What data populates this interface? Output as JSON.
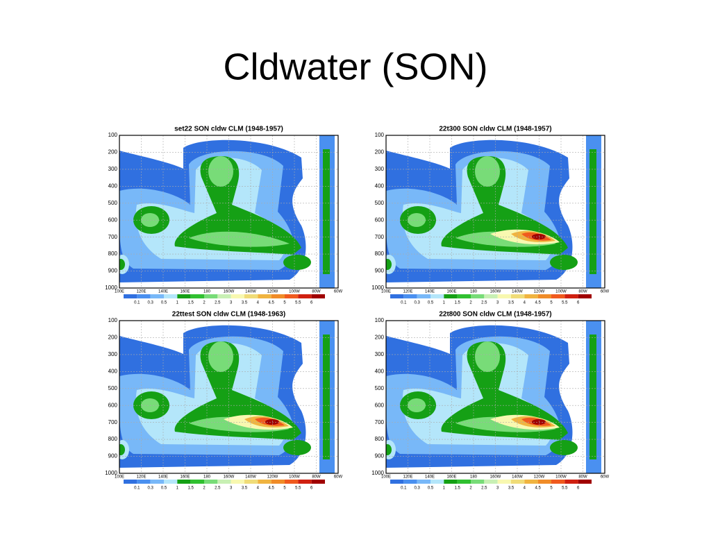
{
  "title": "Cldwater (SON)",
  "chart_data": [
    {
      "type": "contour",
      "title": "set22 SON cldw CLM (1948-1957)",
      "xlim": [
        100,
        300
      ],
      "xticks": [
        {
          "value": 100,
          "label": "100E"
        },
        {
          "value": 120,
          "label": "120E"
        },
        {
          "value": 140,
          "label": "140E"
        },
        {
          "value": 160,
          "label": "160E"
        },
        180,
        {
          "value": 200,
          "label": "160W"
        },
        {
          "value": 220,
          "label": "140W"
        },
        {
          "value": 240,
          "label": "120W"
        },
        {
          "value": 260,
          "label": "100W"
        },
        {
          "value": 280,
          "label": "80W"
        },
        {
          "value": 300,
          "label": "60W"
        }
      ],
      "ylim": [
        1000,
        100
      ],
      "yticks": [
        100,
        200,
        300,
        400,
        500,
        600,
        700,
        800,
        900,
        1000
      ],
      "levels": [
        0.1,
        0.3,
        0.5,
        1,
        1.5,
        2,
        2.5,
        3,
        3.5,
        4,
        4.5,
        5,
        5.5,
        6
      ],
      "colors": [
        "#3070e0",
        "#4a90f0",
        "#78b8f8",
        "#b4e6fa",
        "#15a015",
        "#30c030",
        "#78dc78",
        "#c8f0b4",
        "#f8f8b0",
        "#f0dc78",
        "#f0b440",
        "#f08c28",
        "#f05a1e",
        "#d02010",
        "#a00000"
      ],
      "grid": true
    },
    {
      "type": "contour",
      "title": "22t300 SON cldw CLM (1948-1957)",
      "xlim": [
        100,
        300
      ],
      "xticks": [
        {
          "value": 100,
          "label": "100E"
        },
        {
          "value": 120,
          "label": "120E"
        },
        {
          "value": 140,
          "label": "140E"
        },
        {
          "value": 160,
          "label": "160E"
        },
        180,
        {
          "value": 200,
          "label": "160W"
        },
        {
          "value": 220,
          "label": "140W"
        },
        {
          "value": 240,
          "label": "120W"
        },
        {
          "value": 260,
          "label": "100W"
        },
        {
          "value": 280,
          "label": "80W"
        },
        {
          "value": 300,
          "label": "60W"
        }
      ],
      "ylim": [
        1000,
        100
      ],
      "yticks": [
        100,
        200,
        300,
        400,
        500,
        600,
        700,
        800,
        900,
        1000
      ],
      "levels": [
        0.1,
        0.3,
        0.5,
        1,
        1.5,
        2,
        2.5,
        3,
        3.5,
        4,
        4.5,
        5,
        5.5,
        6
      ],
      "colors": [
        "#3070e0",
        "#4a90f0",
        "#78b8f8",
        "#b4e6fa",
        "#15a015",
        "#30c030",
        "#78dc78",
        "#c8f0b4",
        "#f8f8b0",
        "#f0dc78",
        "#f0b440",
        "#f08c28",
        "#f05a1e",
        "#d02010",
        "#a00000"
      ],
      "grid": true
    },
    {
      "type": "contour",
      "title": "22ttest SON cldw CLM (1948-1963)",
      "xlim": [
        100,
        300
      ],
      "xticks": [
        {
          "value": 100,
          "label": "100E"
        },
        {
          "value": 120,
          "label": "120E"
        },
        {
          "value": 140,
          "label": "140E"
        },
        {
          "value": 160,
          "label": "160E"
        },
        180,
        {
          "value": 200,
          "label": "160W"
        },
        {
          "value": 220,
          "label": "140W"
        },
        {
          "value": 240,
          "label": "120W"
        },
        {
          "value": 260,
          "label": "100W"
        },
        {
          "value": 280,
          "label": "80W"
        },
        {
          "value": 300,
          "label": "60W"
        }
      ],
      "ylim": [
        1000,
        100
      ],
      "yticks": [
        100,
        200,
        300,
        400,
        500,
        600,
        700,
        800,
        900,
        1000
      ],
      "levels": [
        0.1,
        0.3,
        0.5,
        1,
        1.5,
        2,
        2.5,
        3,
        3.5,
        4,
        4.5,
        5,
        5.5,
        6
      ],
      "colors": [
        "#3070e0",
        "#4a90f0",
        "#78b8f8",
        "#b4e6fa",
        "#15a015",
        "#30c030",
        "#78dc78",
        "#c8f0b4",
        "#f8f8b0",
        "#f0dc78",
        "#f0b440",
        "#f08c28",
        "#f05a1e",
        "#d02010",
        "#a00000"
      ],
      "grid": true
    },
    {
      "type": "contour",
      "title": "22t800 SON cldw CLM (1948-1957)",
      "xlim": [
        100,
        300
      ],
      "xticks": [
        {
          "value": 100,
          "label": "100E"
        },
        {
          "value": 120,
          "label": "120E"
        },
        {
          "value": 140,
          "label": "140E"
        },
        {
          "value": 160,
          "label": "160E"
        },
        180,
        {
          "value": 200,
          "label": "160W"
        },
        {
          "value": 220,
          "label": "140W"
        },
        {
          "value": 240,
          "label": "120W"
        },
        {
          "value": 260,
          "label": "100W"
        },
        {
          "value": 280,
          "label": "80W"
        },
        {
          "value": 300,
          "label": "60W"
        }
      ],
      "ylim": [
        1000,
        100
      ],
      "yticks": [
        100,
        200,
        300,
        400,
        500,
        600,
        700,
        800,
        900,
        1000
      ],
      "levels": [
        0.1,
        0.3,
        0.5,
        1,
        1.5,
        2,
        2.5,
        3,
        3.5,
        4,
        4.5,
        5,
        5.5,
        6
      ],
      "colors": [
        "#3070e0",
        "#4a90f0",
        "#78b8f8",
        "#b4e6fa",
        "#15a015",
        "#30c030",
        "#78dc78",
        "#c8f0b4",
        "#f8f8b0",
        "#f0dc78",
        "#f0b440",
        "#f08c28",
        "#f05a1e",
        "#d02010",
        "#a00000"
      ],
      "grid": true
    }
  ]
}
